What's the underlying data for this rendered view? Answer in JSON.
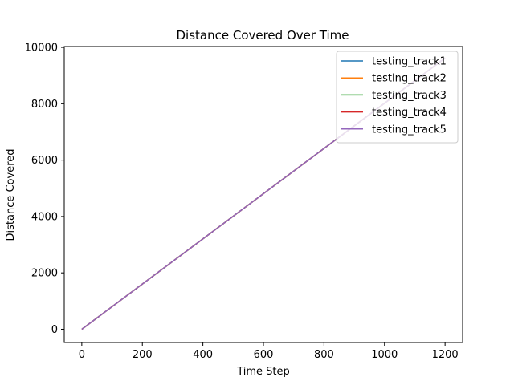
{
  "chart_data": {
    "type": "line",
    "title": "Distance Covered Over Time",
    "xlabel": "Time Step",
    "ylabel": "Distance Covered",
    "xlim": [
      -58,
      1258
    ],
    "ylim": [
      -470,
      10030
    ],
    "xticks": [
      0,
      200,
      400,
      600,
      800,
      1000,
      1200
    ],
    "yticks": [
      0,
      2000,
      4000,
      6000,
      8000,
      10000
    ],
    "grid": false,
    "legend_position": "top-right",
    "series": [
      {
        "name": "testing_track1",
        "color": "#1f77b4",
        "x": [
          0,
          1200
        ],
        "y": [
          0,
          9620
        ]
      },
      {
        "name": "testing_track2",
        "color": "#ff7f0e",
        "x": [
          0,
          1200
        ],
        "y": [
          0,
          9620
        ]
      },
      {
        "name": "testing_track3",
        "color": "#2ca02c",
        "x": [
          0,
          1200
        ],
        "y": [
          0,
          9620
        ]
      },
      {
        "name": "testing_track4",
        "color": "#d62728",
        "x": [
          0,
          1200
        ],
        "y": [
          0,
          9620
        ]
      },
      {
        "name": "testing_track5",
        "color": "#9467bd",
        "x": [
          0,
          1200
        ],
        "y": [
          0,
          9620
        ]
      }
    ]
  }
}
